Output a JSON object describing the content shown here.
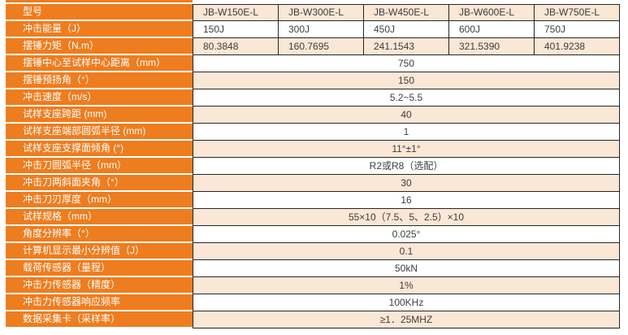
{
  "colors": {
    "orange": "#ED7D1F",
    "peach": "#FBE7D5",
    "border": "#262626",
    "label_text": "#FFFFFF",
    "value_text": "#3D3D3D"
  },
  "table": {
    "header_row": {
      "label": "型号",
      "models": [
        "JB-W150E-L",
        "JB-W300E-L",
        "JB-W450E-L",
        "JB-W600E-L",
        "JB-W750E-L"
      ]
    },
    "model_rows": [
      {
        "label": "冲击能量（J）",
        "values": [
          "150J",
          "300J",
          "450J",
          "600J",
          "750J"
        ]
      },
      {
        "label": "摆锤力矩（N.m）",
        "values": [
          "80.3848",
          "160.7695",
          "241.1543",
          "321.5390",
          "401.9238"
        ]
      }
    ],
    "merged_rows": [
      {
        "label": "摆锤中心至试样中心距离（mm）",
        "value": "750"
      },
      {
        "label": "摆锤预扬角（°）",
        "value": "150"
      },
      {
        "label": "冲击速度（m/s）",
        "value": "5.2~5.5"
      },
      {
        "label": "试样支座跨距 (mm)",
        "value": "40"
      },
      {
        "label": "试样支座端部圆弧半径 (mm)",
        "value": "1"
      },
      {
        "label": "试样支座支撑面倾角 (°)",
        "value": "11°±1°"
      },
      {
        "label": "冲击刀圆弧半径（mm）",
        "value": "R2或R8（选配）"
      },
      {
        "label": "冲击刀两斜面夹角（°）",
        "value": "30"
      },
      {
        "label": "冲击刀刃厚度（mm）",
        "value": "16"
      },
      {
        "label": "试样规格（mm）",
        "value": "55×10（7.5、5、2.5）×10"
      },
      {
        "label": "角度分辨率（°）",
        "value": "0.025°"
      },
      {
        "label": "计算机显示最小分辨值（J）",
        "value": "0.1"
      },
      {
        "label": "载荷传感器（量程）",
        "value": "50kN"
      },
      {
        "label": "冲击力传感器（精度）",
        "value": "1%"
      },
      {
        "label": "冲击力传感器响应频率",
        "value": "100KHz"
      },
      {
        "label": "数据采集卡（采样率）",
        "value": "≥1．25MHZ"
      }
    ]
  }
}
